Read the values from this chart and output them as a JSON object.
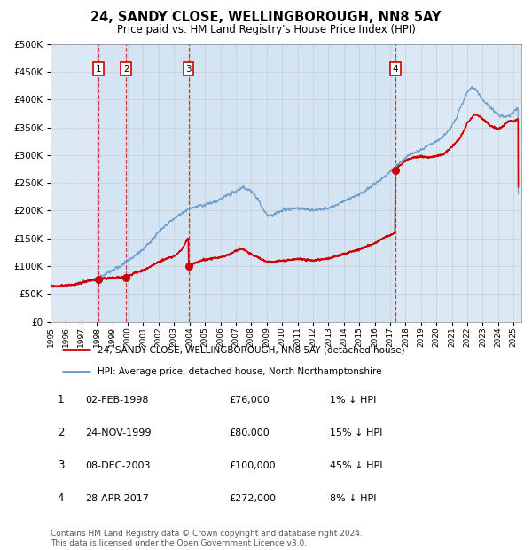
{
  "title": "24, SANDY CLOSE, WELLINGBOROUGH, NN8 5AY",
  "subtitle": "Price paid vs. HM Land Registry's House Price Index (HPI)",
  "title_fontsize": 10.5,
  "subtitle_fontsize": 8.5,
  "plot_bg_color": "#dce9f5",
  "ylim": [
    0,
    500000
  ],
  "yticks": [
    0,
    50000,
    100000,
    150000,
    200000,
    250000,
    300000,
    350000,
    400000,
    450000,
    500000
  ],
  "xlim_start": 1995.0,
  "xlim_end": 2025.5,
  "sale_dates": [
    1998.085,
    1999.897,
    2003.935,
    2017.32
  ],
  "sale_prices": [
    76000,
    80000,
    100000,
    272000
  ],
  "sale_labels": [
    "1",
    "2",
    "3",
    "4"
  ],
  "vline_color": "#cc0000",
  "dot_color": "#cc0000",
  "hpi_line_color": "#6699cc",
  "price_line_color": "#cc0000",
  "legend_label_red": "24, SANDY CLOSE, WELLINGBOROUGH, NN8 5AY (detached house)",
  "legend_label_blue": "HPI: Average price, detached house, North Northamptonshire",
  "table_entries": [
    {
      "label": "1",
      "date": "02-FEB-1998",
      "price": "£76,000",
      "hpi": "1% ↓ HPI"
    },
    {
      "label": "2",
      "date": "24-NOV-1999",
      "price": "£80,000",
      "hpi": "15% ↓ HPI"
    },
    {
      "label": "3",
      "date": "08-DEC-2003",
      "price": "£100,000",
      "hpi": "45% ↓ HPI"
    },
    {
      "label": "4",
      "date": "28-APR-2017",
      "price": "£272,000",
      "hpi": "8% ↓ HPI"
    }
  ],
  "footnote": "Contains HM Land Registry data © Crown copyright and database right 2024.\nThis data is licensed under the Open Government Licence v3.0.",
  "footnote_fontsize": 6.5
}
